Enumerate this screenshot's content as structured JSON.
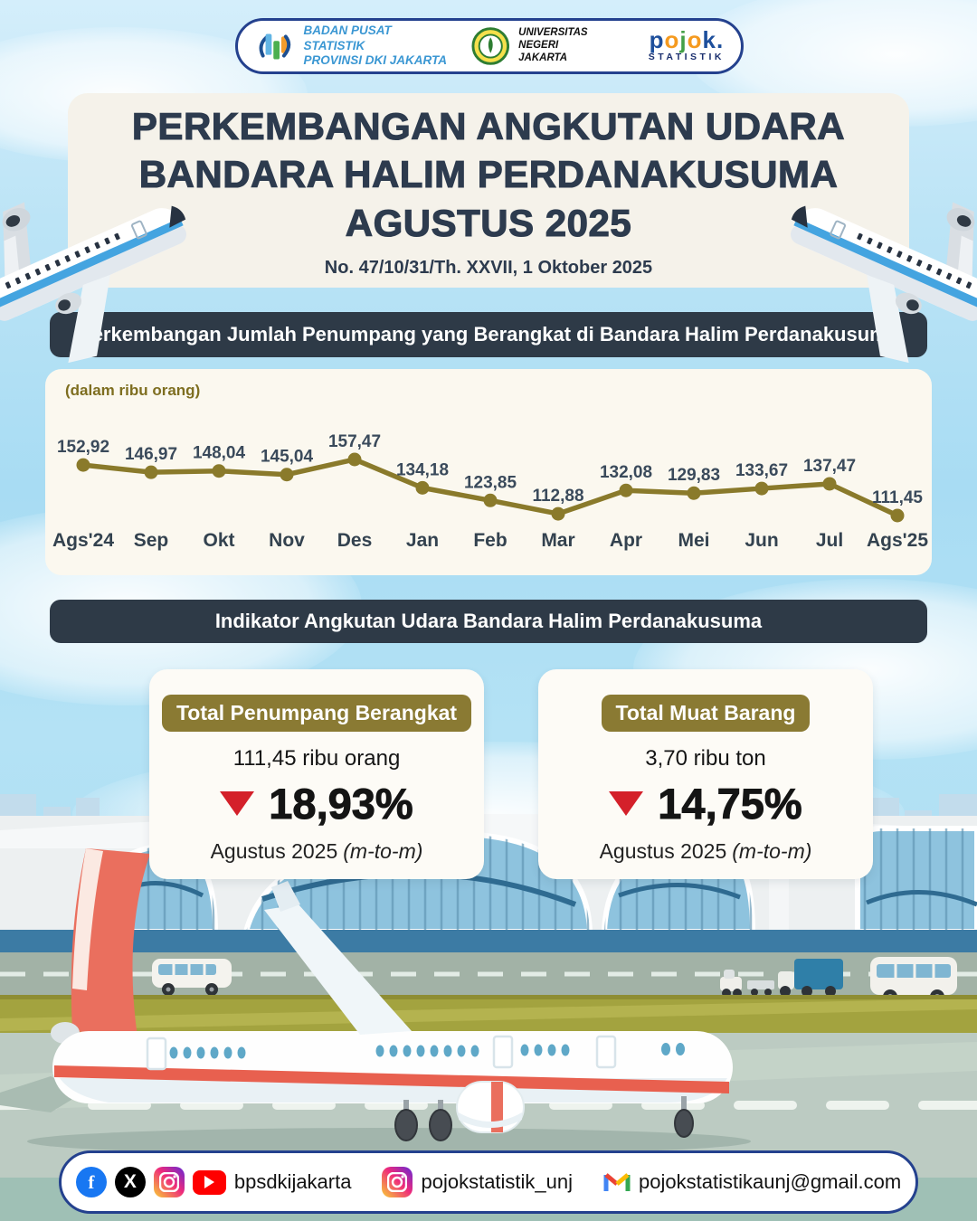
{
  "header": {
    "bps": {
      "line1": "BADAN PUSAT STATISTIK",
      "line2": "PROVINSI DKI JAKARTA"
    },
    "unj": {
      "line1": "UNIVERSITAS NEGERI",
      "line2": "JAKARTA"
    },
    "pojok": {
      "word": "pojok.",
      "letter_colors": [
        "#1d4f9c",
        "#f59a1f",
        "#43a047",
        "#f59a1f",
        "#1d4f9c",
        "#1d4f9c"
      ],
      "sub": "STATISTIK"
    }
  },
  "title": {
    "line1": "PERKEMBANGAN ANGKUTAN UDARA",
    "line2": "BANDARA HALIM PERDANAKUSUMA",
    "line3": "AGUSTUS 2025",
    "subtitle": "No. 47/10/31/Th. XXVII, 1 Oktober 2025"
  },
  "sections": {
    "passengers": "Perkembangan Jumlah Penumpang yang Berangkat di Bandara Halim Perdanakusuma",
    "indicators": "Indikator Angkutan Udara Bandara Halim Perdanakusuma"
  },
  "chart_data": {
    "type": "line",
    "title": "Perkembangan Jumlah Penumpang yang Berangkat di Bandara Halim Perdanakusuma",
    "unit_label": "(dalam ribu orang)",
    "categories": [
      "Ags'24",
      "Sep",
      "Okt",
      "Nov",
      "Des",
      "Jan",
      "Feb",
      "Mar",
      "Apr",
      "Mei",
      "Jun",
      "Jul",
      "Ags'25"
    ],
    "values": [
      152.92,
      146.97,
      148.04,
      145.04,
      157.47,
      134.18,
      123.85,
      112.88,
      132.08,
      129.83,
      133.67,
      137.47,
      111.45
    ],
    "value_labels": [
      "152,92",
      "146,97",
      "148,04",
      "145,04",
      "157,47",
      "134,18",
      "123,85",
      "112,88",
      "132,08",
      "129,83",
      "133,67",
      "137,47",
      "111,45"
    ],
    "line_color": "#8a7a2b",
    "marker_color": "#8a7a2b",
    "label_color": "#3a4a5b",
    "category_color": "#33424f",
    "grid": false,
    "legend": false
  },
  "cards": [
    {
      "badge": "Total Penumpang Berangkat",
      "value": "111,45 ribu orang",
      "direction": "down",
      "change": "18,93%",
      "period": "Agustus 2025",
      "note": "(m-to-m)"
    },
    {
      "badge": "Total Muat Barang",
      "value": "3,70 ribu ton",
      "direction": "down",
      "change": "14,75%",
      "period": "Agustus 2025",
      "note": "(m-to-m)"
    }
  ],
  "footer": {
    "groups": [
      {
        "label": "bpsdkijakarta"
      },
      {
        "label": "pojokstatistik_unj"
      },
      {
        "label": "pojokstatistikaunj@gmail.com"
      }
    ]
  },
  "colors": {
    "navy": "#2e3a47",
    "title_navy": "#2d3b4e",
    "olive": "#8a7a2b",
    "badge_olive": "#8a7a33",
    "red": "#d4202a",
    "coral": "#ea6f5e",
    "sky": "#a8dcf3",
    "card_cream": "#f5f2ea",
    "chart_cream": "#fbf8ef"
  }
}
